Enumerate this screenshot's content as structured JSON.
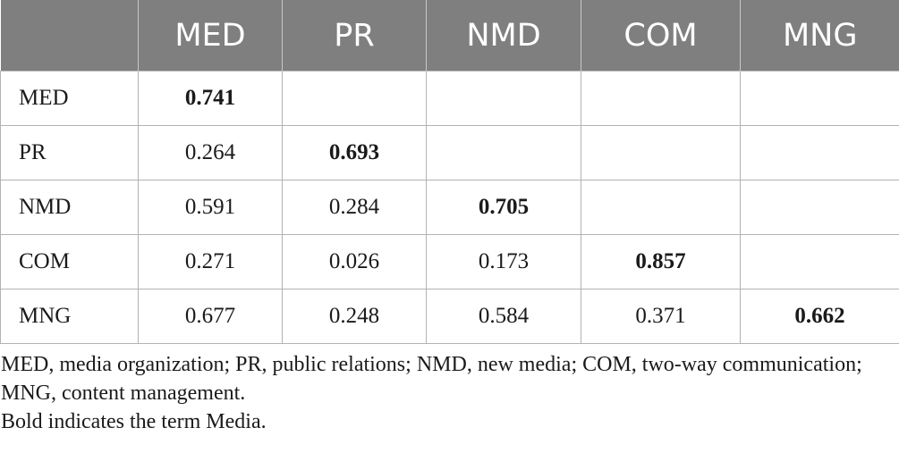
{
  "table": {
    "corner": "",
    "headers": [
      "MED",
      "PR",
      "NMD",
      "COM",
      "MNG"
    ],
    "rows": [
      {
        "label": "MED",
        "cells": [
          "0.741",
          "",
          "",
          "",
          ""
        ]
      },
      {
        "label": "PR",
        "cells": [
          "0.264",
          "0.693",
          "",
          "",
          ""
        ]
      },
      {
        "label": "NMD",
        "cells": [
          "0.591",
          "0.284",
          "0.705",
          "",
          ""
        ]
      },
      {
        "label": "COM",
        "cells": [
          "0.271",
          "0.026",
          "0.173",
          "0.857",
          ""
        ]
      },
      {
        "label": "MNG",
        "cells": [
          "0.677",
          "0.248",
          "0.584",
          "0.371",
          "0.662"
        ]
      }
    ]
  },
  "footnote": {
    "abbreviations": "MED, media organization; PR, public relations; NMD, new media; COM, two-way communication; MNG, content management.",
    "bold_note": "Bold indicates the term Media."
  },
  "colors": {
    "header_bg": "#7f7f7f",
    "header_text": "#ffffff",
    "grid_line": "#b3b3b3",
    "body_text": "#1a1a1a"
  }
}
